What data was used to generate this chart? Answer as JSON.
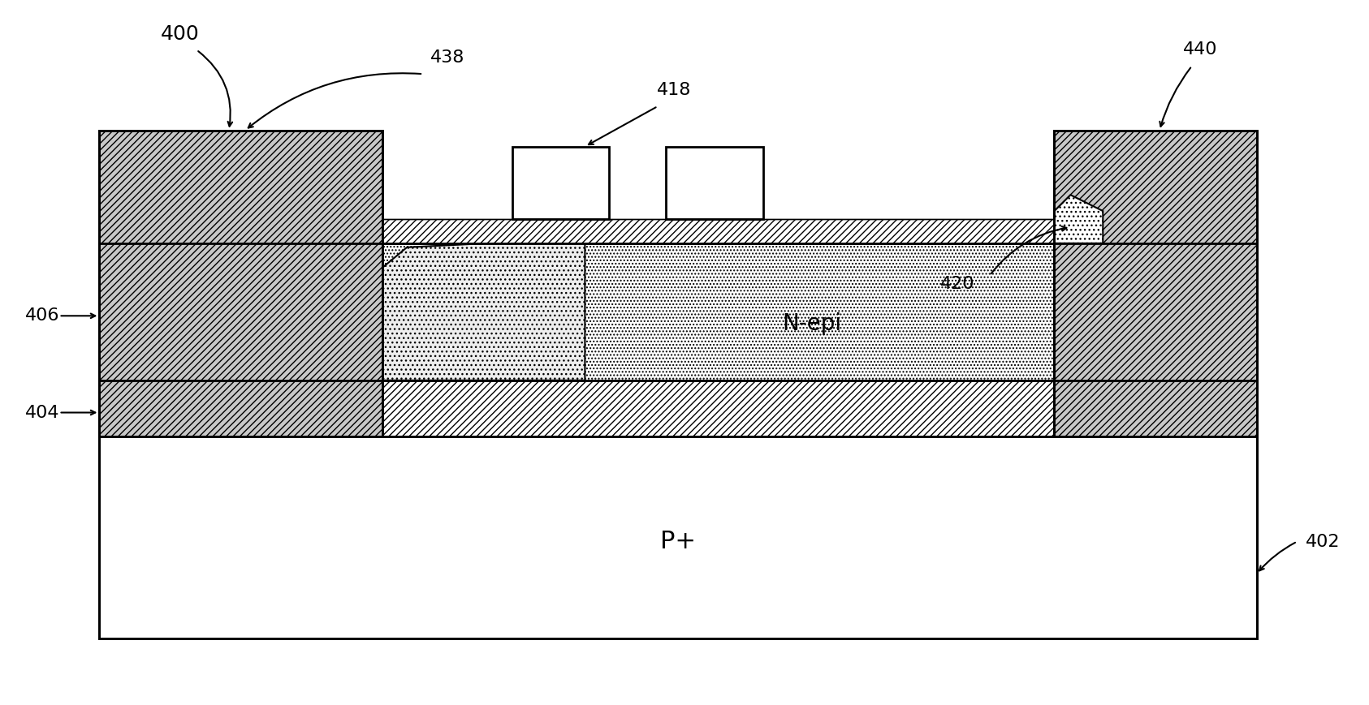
{
  "fig_width": 16.86,
  "fig_height": 8.69,
  "bg_color": "#ffffff",
  "label_400": "400",
  "label_402": "402",
  "label_404": "404",
  "label_406": "406",
  "label_418": "418",
  "label_420": "420",
  "label_438": "438",
  "label_440": "440",
  "label_nepi": "N-epi",
  "label_pplus": "P+",
  "font_size_labels": 16,
  "font_size_region": 18,
  "lw_main": 2.0
}
